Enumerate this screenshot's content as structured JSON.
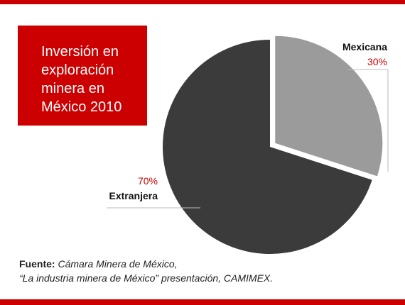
{
  "chart_data": {
    "type": "pie",
    "title": "Inversión en exploración minera en México 2010",
    "categories": [
      "Mexicana",
      "Extranjera"
    ],
    "values": [
      30,
      70
    ],
    "value_labels": [
      "30%",
      "70%"
    ],
    "colors": [
      "#9b9b9b",
      "#3b3b3b"
    ],
    "explode": [
      true,
      false
    ]
  },
  "source": {
    "label": "Fuente:",
    "lines": [
      "Cámara Minera de México,",
      "“La industria minera de México” presentación, CAMIMEX."
    ]
  }
}
